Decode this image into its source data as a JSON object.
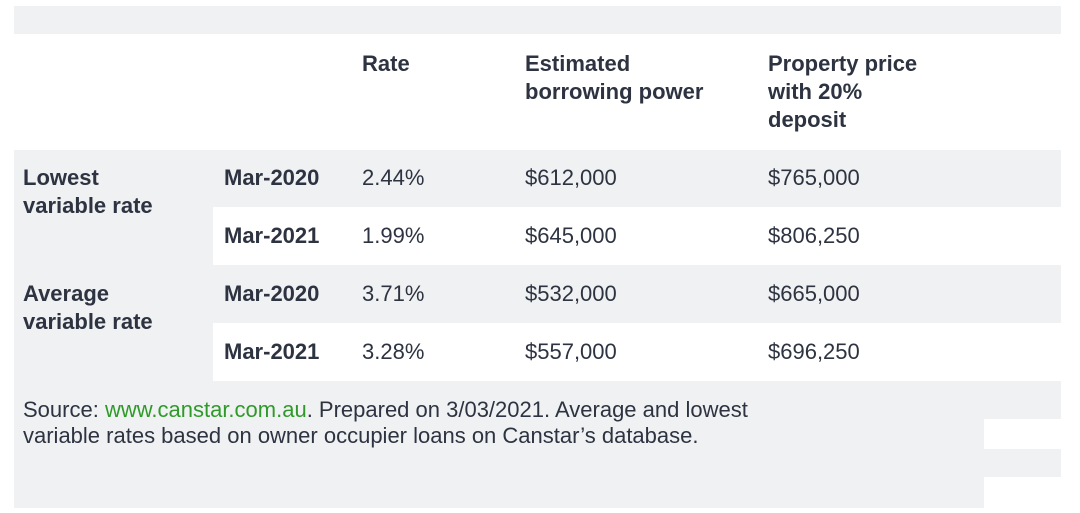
{
  "table": {
    "headers": {
      "rate": "Rate",
      "borrowing": [
        "Estimated",
        "borrowing power"
      ],
      "property": [
        "Property price",
        "with 20%",
        "deposit"
      ]
    },
    "groups": [
      {
        "label": [
          "Lowest",
          "variable rate"
        ],
        "rows": [
          {
            "date": "Mar-2020",
            "rate": "2.44%",
            "borrowing": "$612,000",
            "property": "$765,000"
          },
          {
            "date": "Mar-2021",
            "rate": "1.99%",
            "borrowing": "$645,000",
            "property": "$806,250"
          }
        ]
      },
      {
        "label": [
          "Average",
          "variable rate"
        ],
        "rows": [
          {
            "date": "Mar-2020",
            "rate": "3.71%",
            "borrowing": "$532,000",
            "property": "$665,000"
          },
          {
            "date": "Mar-2021",
            "rate": "3.28%",
            "borrowing": "$557,000",
            "property": "$696,250"
          }
        ]
      }
    ]
  },
  "footnote": {
    "prefix": "Source: ",
    "link": "www.canstar.com.au",
    "line1_rest": ". Prepared on 3/03/2021. Average and lowest",
    "line2": "variable rates based on owner occupier loans on Canstar’s database."
  },
  "colors": {
    "band_gray": "#f0f1f3",
    "text": "#2d3340",
    "link": "#2f9a2a"
  }
}
